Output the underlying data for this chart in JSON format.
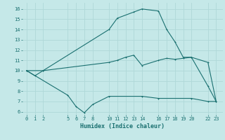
{
  "xlabel": "Humidex (Indice chaleur)",
  "bg_color": "#c5e8e8",
  "grid_color": "#afd8d8",
  "line_color": "#1a7070",
  "xlim": [
    -0.5,
    23.8
  ],
  "ylim": [
    5.7,
    16.6
  ],
  "yticks": [
    6,
    7,
    8,
    9,
    10,
    11,
    12,
    13,
    14,
    15,
    16
  ],
  "xticks": [
    0,
    1,
    2,
    5,
    6,
    7,
    8,
    10,
    11,
    12,
    13,
    14,
    16,
    17,
    18,
    19,
    20,
    22,
    23
  ],
  "line1_x": [
    0,
    1,
    2,
    10,
    11,
    13,
    14,
    16,
    17,
    18,
    19,
    20,
    22,
    23
  ],
  "line1_y": [
    10.0,
    9.5,
    10.0,
    14.0,
    15.1,
    15.7,
    16.0,
    15.8,
    14.0,
    12.8,
    11.3,
    11.3,
    8.5,
    7.0
  ],
  "line2_x": [
    0,
    2,
    10,
    11,
    12,
    13,
    14,
    16,
    17,
    18,
    19,
    20,
    22,
    23
  ],
  "line2_y": [
    10.0,
    10.0,
    10.8,
    11.0,
    11.3,
    11.5,
    10.5,
    11.0,
    11.2,
    11.1,
    11.2,
    11.3,
    10.8,
    7.0
  ],
  "line3_x": [
    0,
    5,
    6,
    7,
    8,
    10,
    14,
    16,
    20,
    22,
    23
  ],
  "line3_y": [
    10.0,
    7.6,
    6.5,
    5.9,
    6.7,
    7.5,
    7.5,
    7.3,
    7.3,
    7.0,
    7.0
  ],
  "line_lw": 0.8,
  "marker_size": 2.0,
  "tick_fontsize": 5.0,
  "xlabel_fontsize": 6.0
}
